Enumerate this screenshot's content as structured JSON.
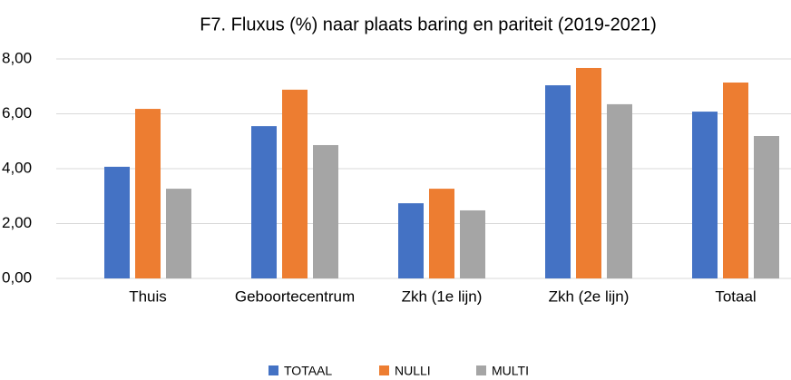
{
  "chart_data": {
    "type": "bar",
    "title": "F7. Fluxus (%) naar plaats baring en pariteit (2019-2021)",
    "categories": [
      "Thuis",
      "Geboortecentrum",
      "Zkh (1e lijn)",
      "Zkh (2e lijn)",
      "Totaal"
    ],
    "series": [
      {
        "name": "TOTAAL",
        "color": "#4472c4",
        "values": [
          4.07,
          5.55,
          2.74,
          7.04,
          6.08
        ]
      },
      {
        "name": "NULLI",
        "color": "#ed7d31",
        "values": [
          6.18,
          6.88,
          3.27,
          7.67,
          7.14
        ]
      },
      {
        "name": "MULTI",
        "color": "#a5a5a5",
        "values": [
          3.27,
          4.86,
          2.48,
          6.35,
          5.19
        ]
      }
    ],
    "ylim": [
      0,
      8
    ],
    "yticks": [
      {
        "value": 0,
        "label": "0,00"
      },
      {
        "value": 2,
        "label": "2,00"
      },
      {
        "value": 4,
        "label": "4,00"
      },
      {
        "value": 6,
        "label": "6,00"
      },
      {
        "value": 8,
        "label": "8,00"
      }
    ],
    "grid": true,
    "legend": "bottom"
  }
}
